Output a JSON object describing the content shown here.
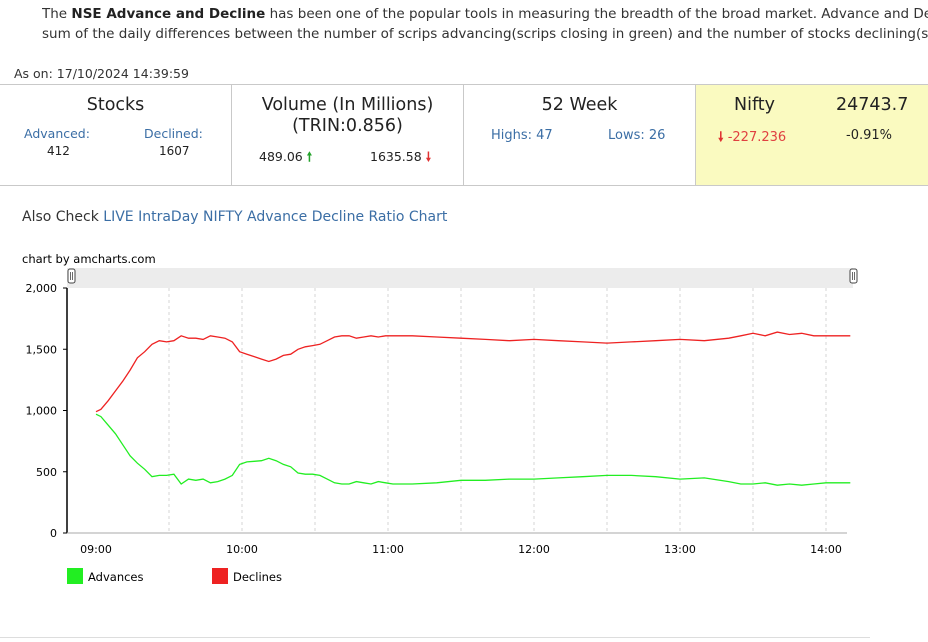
{
  "intro": {
    "line1_pre": "The ",
    "line1_bold": "NSE Advance and Decline",
    "line1_post": " has been one of the popular tools in measuring the breadth of the broad market. Advance and De",
    "line2": "sum of the daily differences between the number of scrips advancing(scrips closing in green) and the number of stocks declining(sc"
  },
  "as_on": "As on: 17/10/2024 14:39:59",
  "stocks": {
    "title": "Stocks",
    "advanced_label": "Advanced:",
    "advanced_value": "412",
    "declined_label": "Declined:",
    "declined_value": "1607"
  },
  "volume": {
    "title": "Volume (In Millions)",
    "trin": "(TRIN:0.856)",
    "adv_value": "489.06",
    "adv_arrow": "🠕",
    "dec_value": "1635.58",
    "dec_arrow": "🠗"
  },
  "week52": {
    "title": "52 Week",
    "highs": "Highs: 47",
    "lows": "Lows: 26"
  },
  "nifty": {
    "title": "Nifty",
    "value": "24743.7",
    "arrow": "🠗",
    "change": "-227.236",
    "percent": "-0.91%"
  },
  "also_check": {
    "prefix": "Also Check ",
    "link": "LIVE IntraDay NIFTY Advance Decline Ratio Chart"
  },
  "chart_credit": "chart by amcharts.com",
  "colors": {
    "advances": "#22ee22",
    "declines": "#ee2222",
    "link": "#3b6ea5",
    "nifty_bg": "#fafac0"
  },
  "chart_data": {
    "type": "line",
    "x_unit": "time",
    "x_ticks": [
      "09:00",
      "10:00",
      "11:00",
      "12:00",
      "13:00",
      "14:00"
    ],
    "y_ticks": [
      "0",
      "500",
      "1,000",
      "1,500",
      "2,000"
    ],
    "ylim": [
      0,
      2000
    ],
    "x_range": [
      "09:00",
      "14:00"
    ],
    "grid": "vertical dashed",
    "legend": "bottom-left",
    "series": [
      {
        "name": "Advances",
        "color": "#22ee22",
        "points": [
          [
            "09:00",
            970
          ],
          [
            "09:02",
            950
          ],
          [
            "09:05",
            880
          ],
          [
            "09:08",
            810
          ],
          [
            "09:11",
            720
          ],
          [
            "09:14",
            630
          ],
          [
            "09:17",
            570
          ],
          [
            "09:20",
            520
          ],
          [
            "09:23",
            460
          ],
          [
            "09:26",
            470
          ],
          [
            "09:29",
            470
          ],
          [
            "09:32",
            480
          ],
          [
            "09:35",
            400
          ],
          [
            "09:38",
            440
          ],
          [
            "09:41",
            430
          ],
          [
            "09:44",
            440
          ],
          [
            "09:47",
            410
          ],
          [
            "09:50",
            420
          ],
          [
            "09:53",
            440
          ],
          [
            "09:56",
            470
          ],
          [
            "09:59",
            560
          ],
          [
            "10:02",
            580
          ],
          [
            "10:05",
            585
          ],
          [
            "10:08",
            590
          ],
          [
            "10:11",
            610
          ],
          [
            "10:14",
            590
          ],
          [
            "10:17",
            560
          ],
          [
            "10:20",
            540
          ],
          [
            "10:23",
            490
          ],
          [
            "10:26",
            480
          ],
          [
            "10:29",
            480
          ],
          [
            "10:32",
            470
          ],
          [
            "10:35",
            440
          ],
          [
            "10:38",
            410
          ],
          [
            "10:41",
            400
          ],
          [
            "10:44",
            400
          ],
          [
            "10:47",
            420
          ],
          [
            "10:50",
            410
          ],
          [
            "10:53",
            400
          ],
          [
            "10:56",
            420
          ],
          [
            "10:59",
            410
          ],
          [
            "11:02",
            400
          ],
          [
            "11:10",
            400
          ],
          [
            "11:20",
            410
          ],
          [
            "11:30",
            430
          ],
          [
            "11:40",
            430
          ],
          [
            "11:50",
            440
          ],
          [
            "12:00",
            440
          ],
          [
            "12:10",
            450
          ],
          [
            "12:20",
            460
          ],
          [
            "12:30",
            470
          ],
          [
            "12:40",
            470
          ],
          [
            "12:50",
            460
          ],
          [
            "13:00",
            440
          ],
          [
            "13:10",
            450
          ],
          [
            "13:20",
            420
          ],
          [
            "13:25",
            400
          ],
          [
            "13:30",
            400
          ],
          [
            "13:35",
            410
          ],
          [
            "13:40",
            390
          ],
          [
            "13:45",
            400
          ],
          [
            "13:50",
            390
          ],
          [
            "13:55",
            400
          ],
          [
            "14:00",
            410
          ],
          [
            "14:05",
            410
          ],
          [
            "14:10",
            410
          ]
        ]
      },
      {
        "name": "Declines",
        "color": "#ee2222",
        "points": [
          [
            "09:00",
            990
          ],
          [
            "09:02",
            1010
          ],
          [
            "09:05",
            1080
          ],
          [
            "09:08",
            1160
          ],
          [
            "09:11",
            1240
          ],
          [
            "09:14",
            1330
          ],
          [
            "09:17",
            1430
          ],
          [
            "09:20",
            1480
          ],
          [
            "09:23",
            1540
          ],
          [
            "09:26",
            1570
          ],
          [
            "09:29",
            1560
          ],
          [
            "09:32",
            1570
          ],
          [
            "09:35",
            1610
          ],
          [
            "09:38",
            1590
          ],
          [
            "09:41",
            1590
          ],
          [
            "09:44",
            1580
          ],
          [
            "09:47",
            1610
          ],
          [
            "09:50",
            1600
          ],
          [
            "09:53",
            1590
          ],
          [
            "09:56",
            1560
          ],
          [
            "09:59",
            1480
          ],
          [
            "10:02",
            1460
          ],
          [
            "10:05",
            1440
          ],
          [
            "10:08",
            1420
          ],
          [
            "10:11",
            1400
          ],
          [
            "10:14",
            1420
          ],
          [
            "10:17",
            1450
          ],
          [
            "10:20",
            1460
          ],
          [
            "10:23",
            1500
          ],
          [
            "10:26",
            1520
          ],
          [
            "10:29",
            1530
          ],
          [
            "10:32",
            1540
          ],
          [
            "10:35",
            1570
          ],
          [
            "10:38",
            1600
          ],
          [
            "10:41",
            1610
          ],
          [
            "10:44",
            1610
          ],
          [
            "10:47",
            1590
          ],
          [
            "10:50",
            1600
          ],
          [
            "10:53",
            1610
          ],
          [
            "10:56",
            1600
          ],
          [
            "10:59",
            1610
          ],
          [
            "11:10",
            1610
          ],
          [
            "11:20",
            1600
          ],
          [
            "11:30",
            1590
          ],
          [
            "11:40",
            1580
          ],
          [
            "11:50",
            1570
          ],
          [
            "12:00",
            1580
          ],
          [
            "12:10",
            1570
          ],
          [
            "12:20",
            1560
          ],
          [
            "12:30",
            1550
          ],
          [
            "12:40",
            1560
          ],
          [
            "12:50",
            1570
          ],
          [
            "13:00",
            1580
          ],
          [
            "13:10",
            1570
          ],
          [
            "13:20",
            1590
          ],
          [
            "13:25",
            1610
          ],
          [
            "13:30",
            1630
          ],
          [
            "13:35",
            1610
          ],
          [
            "13:40",
            1640
          ],
          [
            "13:45",
            1620
          ],
          [
            "13:50",
            1630
          ],
          [
            "13:55",
            1610
          ],
          [
            "14:00",
            1610
          ],
          [
            "14:05",
            1610
          ],
          [
            "14:10",
            1610
          ]
        ]
      }
    ]
  }
}
